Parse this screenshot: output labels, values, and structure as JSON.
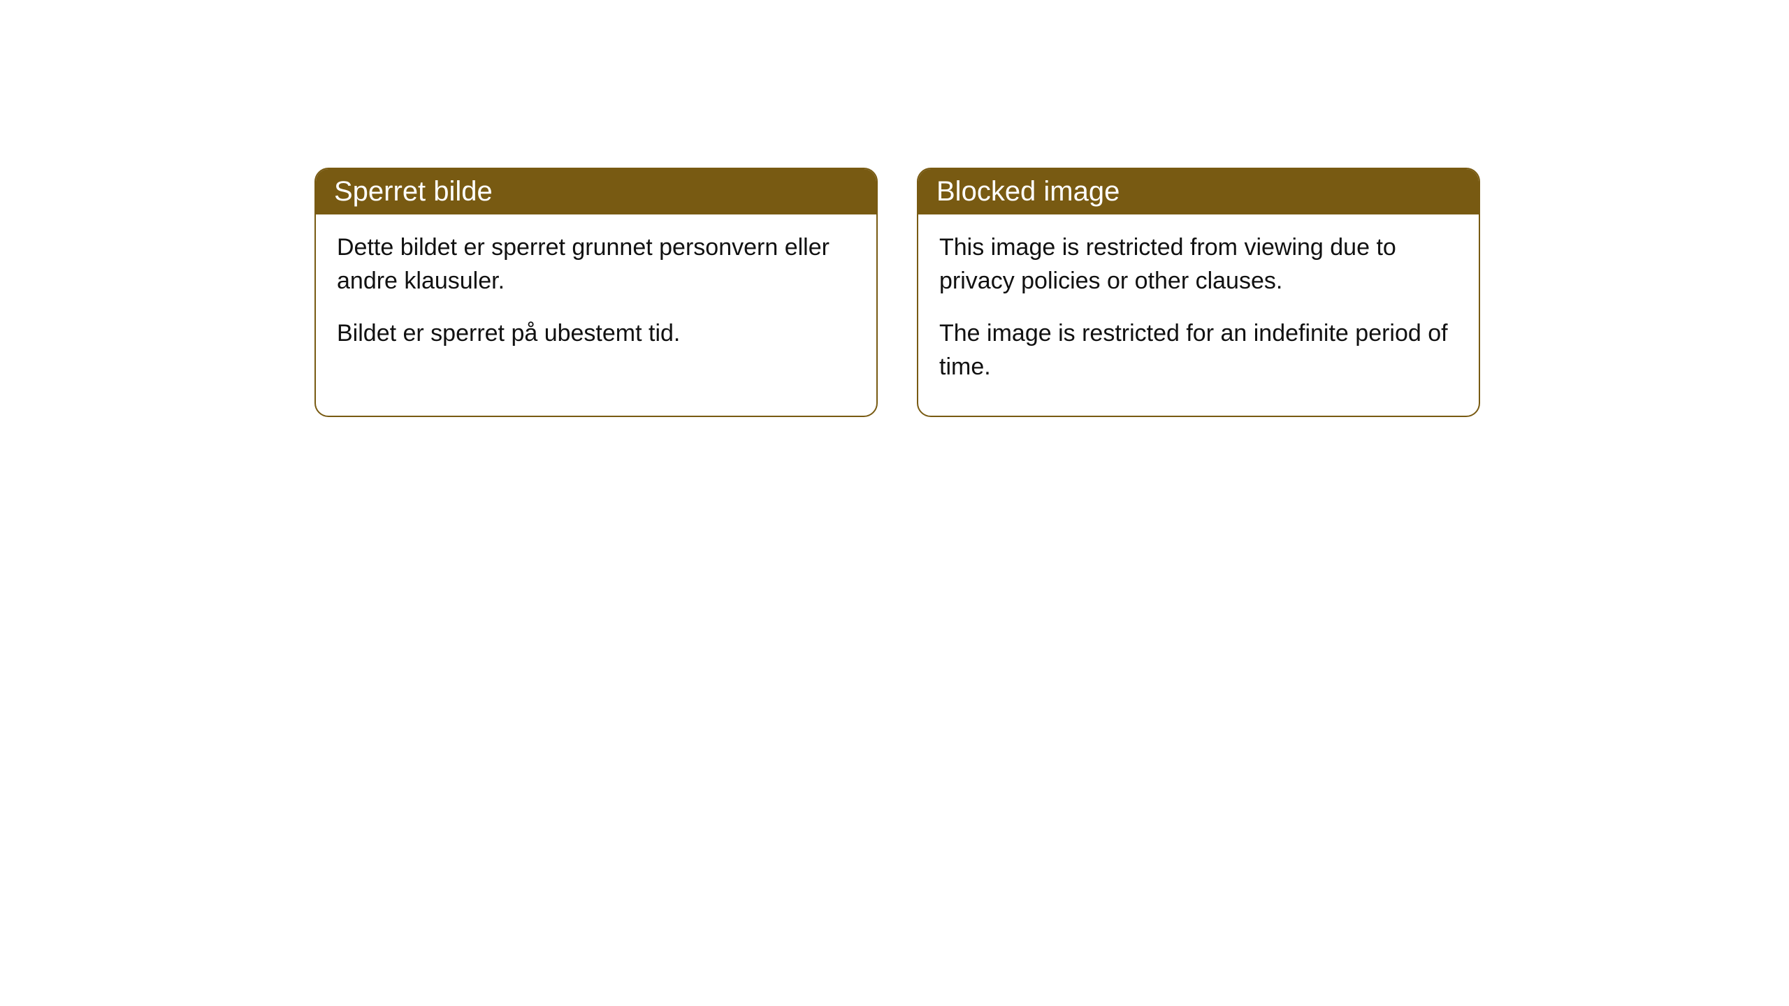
{
  "cards": [
    {
      "title": "Sperret bilde",
      "paragraph1": "Dette bildet er sperret grunnet personvern eller andre klausuler.",
      "paragraph2": "Bildet er sperret på ubestemt tid."
    },
    {
      "title": "Blocked image",
      "paragraph1": "This image is restricted from viewing due to privacy policies or other clauses.",
      "paragraph2": "The image is restricted for an indefinite period of time."
    }
  ],
  "style": {
    "header_background": "#785a12",
    "header_text_color": "#ffffff",
    "border_color": "#785a12",
    "body_background": "#ffffff",
    "body_text_color": "#111111",
    "border_radius": 20,
    "header_fontsize": 40,
    "body_fontsize": 34
  }
}
